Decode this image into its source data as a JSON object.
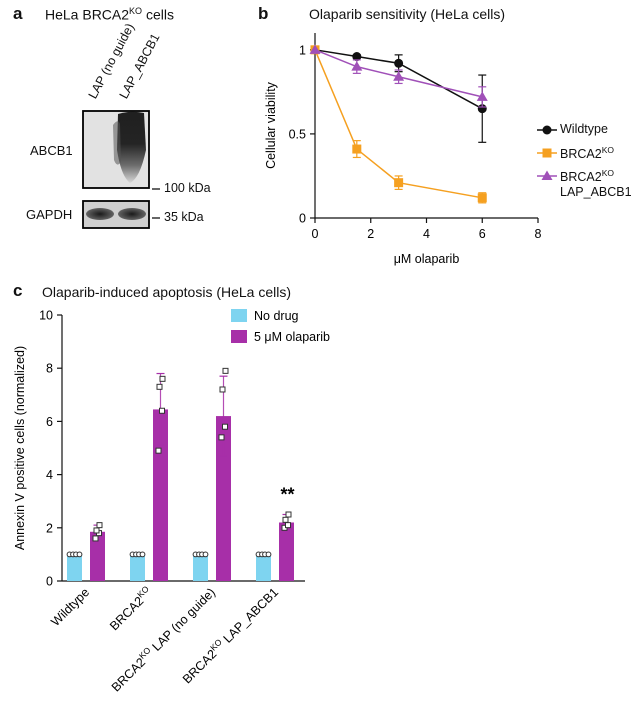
{
  "panel_a": {
    "letter": "a",
    "title_main": "HeLa BRCA2",
    "title_sup": "KO",
    "title_end": " cells",
    "lanes": [
      "LAP (no guide)",
      "LAP_ABCB1"
    ],
    "blots": [
      {
        "label": "ABCB1",
        "marker": "100 kDa"
      },
      {
        "label": "GAPDH",
        "marker": "35 kDa"
      }
    ]
  },
  "chart_data": [
    {
      "type": "line",
      "letter": "b",
      "title": "Olaparib sensitivity (HeLa cells)",
      "xlabel": "μM olaparib",
      "ylabel": "Cellular viability",
      "xlim": [
        0,
        8
      ],
      "ylim": [
        0,
        1.1
      ],
      "xticks": [
        0,
        2,
        4,
        6,
        8
      ],
      "yticks": [
        0,
        0.5,
        1
      ],
      "ytick_labels": [
        "0",
        "0.5",
        "1"
      ],
      "x": [
        0,
        1.5,
        3,
        6
      ],
      "series": [
        {
          "name_main": "Wildtype",
          "name_sup": "",
          "name_line2": "",
          "color": "#111111",
          "marker": "circle",
          "values": [
            1.0,
            0.96,
            0.92,
            0.65
          ],
          "errors": [
            0,
            0.01,
            0.05,
            0.2
          ]
        },
        {
          "name_main": "BRCA2",
          "name_sup": "KO",
          "name_line2": "",
          "color": "#f5a020",
          "marker": "square",
          "values": [
            1.0,
            0.41,
            0.21,
            0.12
          ],
          "errors": [
            0,
            0.05,
            0.04,
            0.03
          ]
        },
        {
          "name_main": "BRCA2",
          "name_sup": "KO",
          "name_line2": "LAP_ABCB1",
          "color": "#a050b8",
          "marker": "triangle",
          "values": [
            1.0,
            0.9,
            0.84,
            0.72
          ],
          "errors": [
            0,
            0.04,
            0.04,
            0.06
          ]
        }
      ],
      "legend": "right"
    },
    {
      "type": "bar",
      "letter": "c",
      "title": "Olaparib-induced apoptosis (HeLa cells)",
      "ylabel": "Annexin V positive cells (normalized)",
      "ylim": [
        0,
        10
      ],
      "yticks": [
        0,
        2,
        4,
        6,
        8,
        10
      ],
      "categories": [
        {
          "main": "Wildtype",
          "sup": "",
          "rest": ""
        },
        {
          "main": "BRCA2",
          "sup": "KO",
          "rest": ""
        },
        {
          "main": "BRCA2",
          "sup": "KO",
          "rest": " LAP (no guide)"
        },
        {
          "main": "BRCA2",
          "sup": "KO",
          "rest": " LAP_ABCB1"
        }
      ],
      "series": [
        {
          "name": "No drug",
          "color": "#7ed4f0",
          "values": [
            1,
            1,
            1,
            1
          ],
          "errors": [
            0,
            0,
            0,
            0
          ],
          "points": [
            [
              1,
              1,
              1,
              1
            ],
            [
              1,
              1,
              1,
              1
            ],
            [
              1,
              1,
              1,
              1
            ],
            [
              1,
              1,
              1,
              1
            ]
          ]
        },
        {
          "name": "5 μM olaparib",
          "color": "#a72fa8",
          "values": [
            1.85,
            6.45,
            6.2,
            2.2
          ],
          "errors": [
            0.25,
            1.35,
            1.5,
            0.3
          ],
          "points": [
            [
              1.6,
              1.8,
              1.9,
              2.1
            ],
            [
              4.9,
              6.4,
              7.3,
              7.6
            ],
            [
              5.4,
              5.8,
              7.2,
              7.9
            ],
            [
              2.0,
              2.1,
              2.3,
              2.5
            ]
          ]
        }
      ],
      "annotation": "**",
      "legend": "top-center"
    }
  ]
}
